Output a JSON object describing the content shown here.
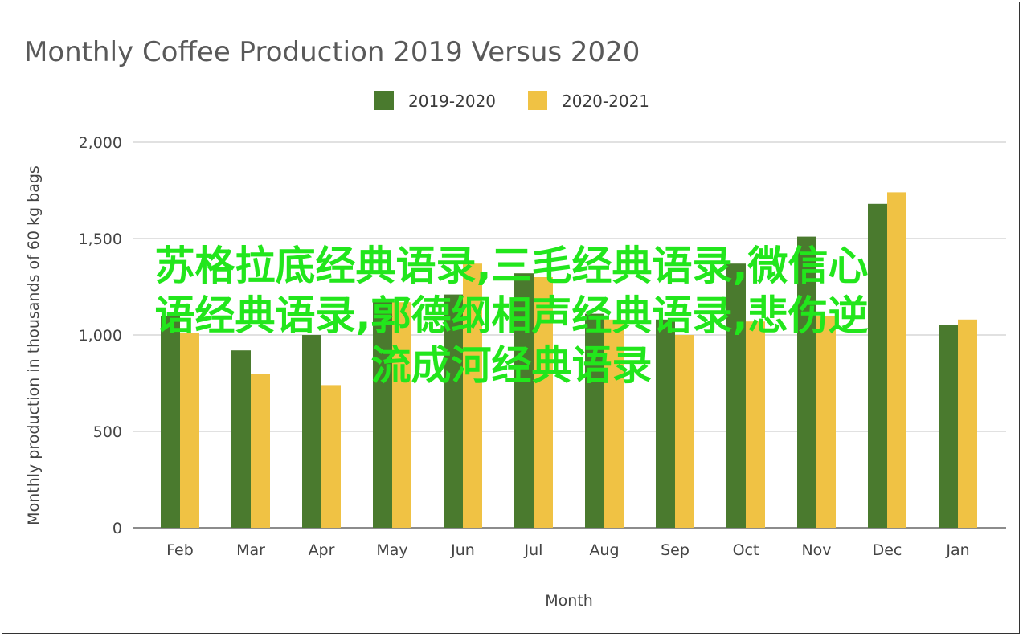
{
  "chart_data": {
    "type": "bar",
    "title": "Monthly Coffee Production 2019 Versus 2020",
    "xlabel": "Month",
    "ylabel": "Monthly production in thousands of 60 kg bags",
    "categories": [
      "Feb",
      "Mar",
      "Apr",
      "May",
      "Jun",
      "Jul",
      "Aug",
      "Sep",
      "Oct",
      "Nov",
      "Dec",
      "Jan"
    ],
    "series": [
      {
        "name": "2019-2020",
        "color": "#4a7a2e",
        "values": [
          1100,
          920,
          1000,
          1170,
          1210,
          1320,
          1110,
          1080,
          1370,
          1510,
          1680,
          1050
        ]
      },
      {
        "name": "2020-2021",
        "color": "#f0c244",
        "values": [
          1010,
          800,
          740,
          1170,
          1370,
          1300,
          1080,
          1000,
          1070,
          1100,
          1740,
          1080
        ]
      }
    ],
    "ylim": [
      0,
      2000
    ],
    "yticks": [
      0,
      500,
      1000,
      1500,
      2000
    ],
    "ytick_labels": [
      "0",
      "500",
      "1,000",
      "1,500",
      "2,000"
    ],
    "grid": true,
    "legend": "top-center"
  },
  "overlay_text": {
    "line1": "苏格拉底经典语录,三毛经典语录,微信心",
    "line2": "语经典语录,郭德纲相声经典语录,悲伤逆",
    "line3": "流成河经典语录"
  }
}
